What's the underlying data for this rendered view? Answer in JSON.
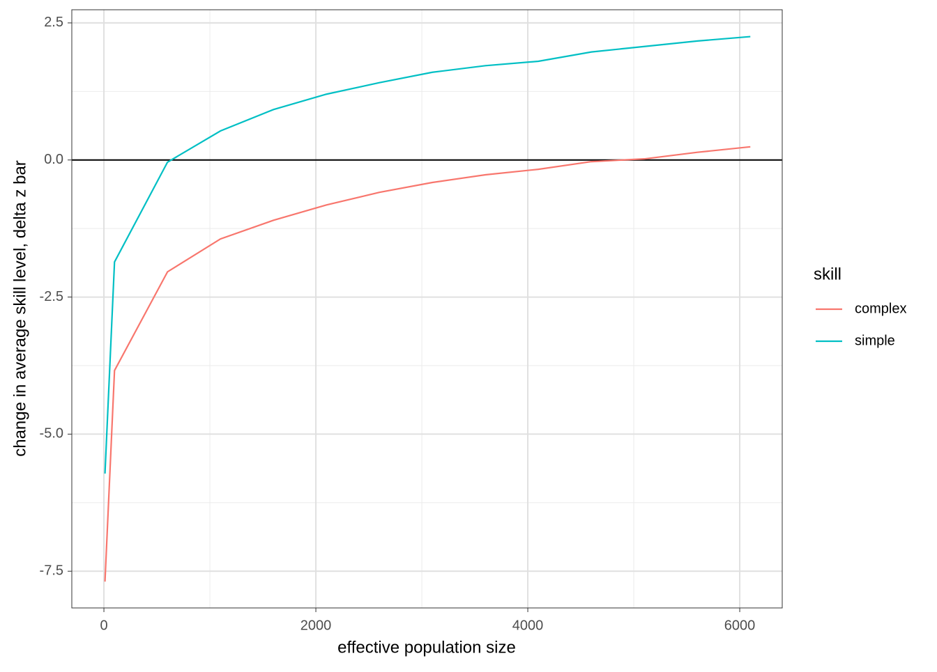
{
  "chart_data": {
    "type": "line",
    "x_label": "effective population size",
    "y_label": "change in average skill level, delta z bar",
    "x": [
      10,
      100,
      600,
      1100,
      1600,
      2100,
      2600,
      3100,
      3600,
      4100,
      4600,
      5100,
      5600,
      6100
    ],
    "series": [
      {
        "name": "complex",
        "color": "#F8766D",
        "values": [
          -7.69,
          -3.84,
          -2.04,
          -1.44,
          -1.1,
          -0.82,
          -0.59,
          -0.41,
          -0.27,
          -0.17,
          -0.03,
          0.02,
          0.14,
          0.24
        ]
      },
      {
        "name": "simple",
        "color": "#00BFC4",
        "values": [
          -5.72,
          -1.86,
          -0.04,
          0.53,
          0.92,
          1.2,
          1.41,
          1.6,
          1.72,
          1.8,
          1.97,
          2.07,
          2.17,
          2.25
        ]
      }
    ],
    "legend_title": "skill",
    "legend": "right",
    "xlim": [
      -303,
      6401
    ],
    "ylim": [
      -8.17,
      2.74
    ],
    "xticks": [
      0,
      2000,
      4000,
      6000
    ],
    "yticks": [
      2.5,
      {
        "value": 0,
        "label": "0.0"
      },
      -2.5,
      {
        "value": -5,
        "label": "-5.0"
      },
      -7.5
    ],
    "minor_xticks": [
      1000,
      3000,
      5000
    ],
    "minor_yticks": [
      1.25,
      -1.25,
      -3.75,
      -6.25
    ],
    "hline": 0,
    "grid": true
  }
}
